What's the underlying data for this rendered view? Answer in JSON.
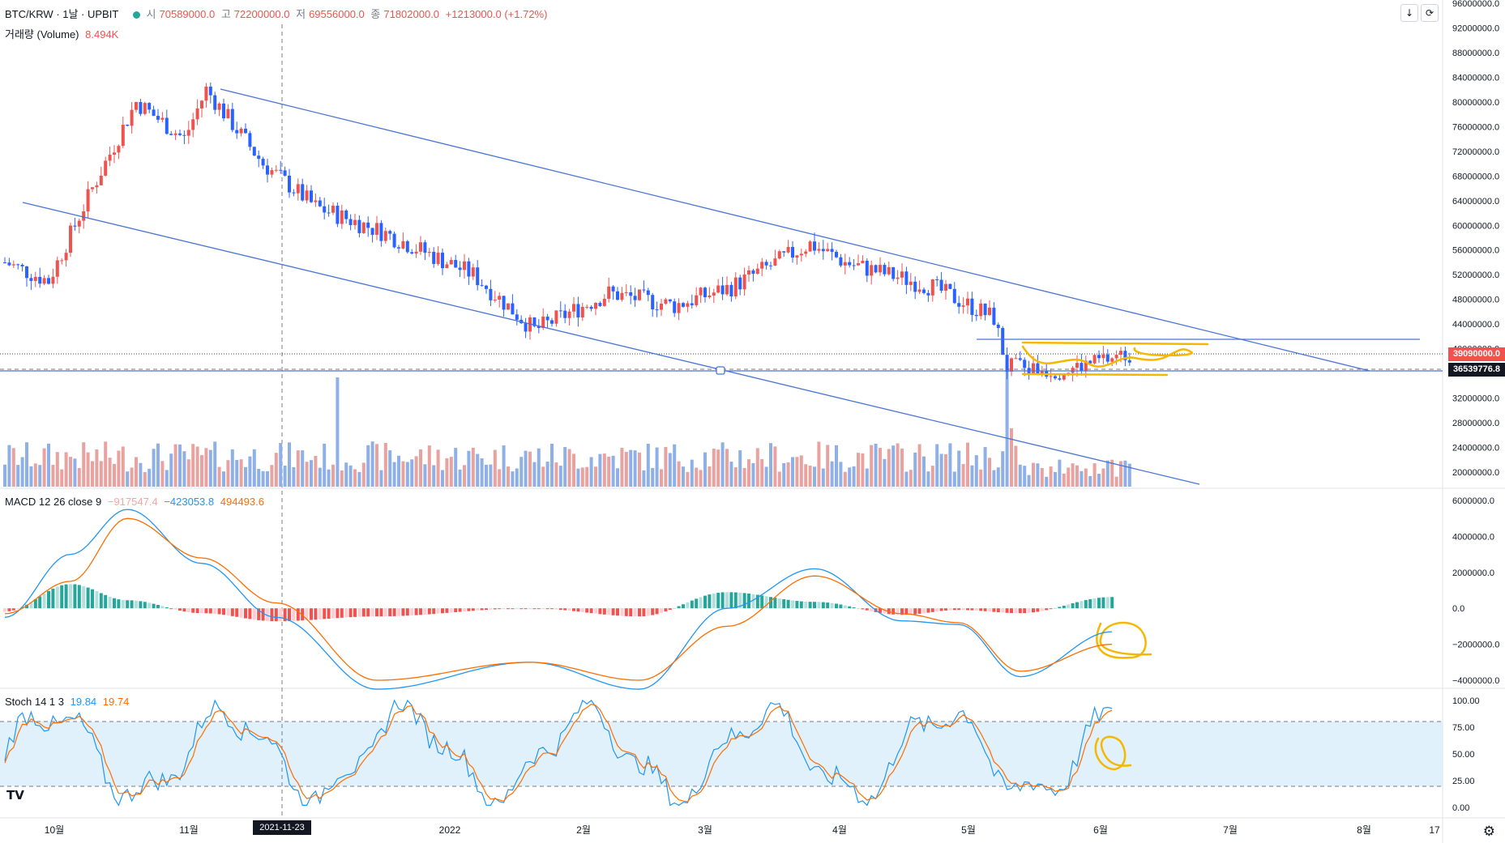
{
  "header": {
    "symbol": "BTC/KRW · 1날 · UPBIT",
    "open_label": "시",
    "open_value": "70589000.0",
    "high_label": "고",
    "high_value": "72200000.0",
    "low_label": "저",
    "low_value": "69556000.0",
    "close_label": "종",
    "close_value": "71802000.0",
    "change": "+1213000.0 (+1.72%)",
    "volume_label": "거래량 (Volume)",
    "volume_value": "8.494K"
  },
  "macd_legend": {
    "title": "MACD 12 26 close 9",
    "hist": "−917547.4",
    "macd": "−423053.8",
    "signal": "494493.6"
  },
  "stoch_legend": {
    "title": "Stoch 14 1 3",
    "k": "19.84",
    "d": "19.74"
  },
  "price_axis": [
    "96000000.0",
    "92000000.0",
    "88000000.0",
    "84000000.0",
    "80000000.0",
    "76000000.0",
    "72000000.0",
    "68000000.0",
    "64000000.0",
    "60000000.0",
    "56000000.0",
    "52000000.0",
    "48000000.0",
    "44000000.0",
    "40000000.0",
    "32000000.0",
    "28000000.0",
    "24000000.0",
    "20000000.0"
  ],
  "price_tags": {
    "last": "39090000.0",
    "crosshair": "36539776.8"
  },
  "macd_axis": [
    "6000000.0",
    "4000000.0",
    "2000000.0",
    "0.0",
    "−2000000.0",
    "−4000000.0"
  ],
  "stoch_axis": [
    "100.00",
    "75.00",
    "50.00",
    "25.00",
    "0.00"
  ],
  "time_axis": [
    "10월",
    "11월",
    "2022",
    "2월",
    "3월",
    "4월",
    "5월",
    "6월",
    "7월",
    "8월",
    "17"
  ],
  "crosshair_date": "2021-11-23",
  "toolbar": {
    "scroll_icon": "arrow-down-icon",
    "refresh_icon": "refresh-icon"
  },
  "colors": {
    "up": "#ef5350",
    "down": "#2962ff",
    "volume_up": "#e8a3a0",
    "volume_down": "#8fb0e6",
    "macd_line": "#2196f3",
    "signal_line": "#ff6d00",
    "trendline": "#4a74d6",
    "annotation": "#f5b800"
  },
  "chart_data": [
    {
      "type": "line",
      "title": "BTC/KRW · 1날 · UPBIT",
      "x": [
        "2021-09-25",
        "2021-10-05",
        "2021-10-15",
        "2021-10-25",
        "2021-11-05",
        "2021-11-10",
        "2021-11-23",
        "2021-12-05",
        "2021-12-20",
        "2022-01-10",
        "2022-01-24",
        "2022-02-10",
        "2022-02-25",
        "2022-03-10",
        "2022-03-28",
        "2022-04-05",
        "2022-04-25",
        "2022-05-09",
        "2022-05-12",
        "2022-05-25",
        "2022-06-05",
        "2022-06-11"
      ],
      "series": [
        {
          "values": [
            54000000,
            51000000,
            66000000,
            80000000,
            74000000,
            82000000,
            70000000,
            63000000,
            59000000,
            52000000,
            43000000,
            49000000,
            47000000,
            50000000,
            57000000,
            54000000,
            50000000,
            45000000,
            37000000,
            36500000,
            38500000,
            39090000
          ]
        }
      ],
      "ylim": [
        20000000,
        96000000
      ]
    },
    {
      "type": "bar",
      "title": "거래량 (Volume)",
      "x": [
        "2021-10",
        "2021-11",
        "2021-12",
        "2022-01",
        "2022-02",
        "2022-03",
        "2022-04",
        "2022-05",
        "2022-05-12",
        "2022-06"
      ],
      "series": [
        {
          "values": [
            4.5,
            6.0,
            5.0,
            4.2,
            5.5,
            5.0,
            4.0,
            5.0,
            30.0,
            8.494
          ]
        }
      ]
    },
    {
      "type": "line",
      "title": "MACD 12 26 close 9",
      "x": [
        "2021-09-25",
        "2021-10-10",
        "2021-10-20",
        "2021-11-10",
        "2021-11-25",
        "2021-12-15",
        "2022-01-20",
        "2022-02-15",
        "2022-03-10",
        "2022-03-30",
        "2022-04-20",
        "2022-05-10",
        "2022-05-20",
        "2022-06-05"
      ],
      "series": [
        {
          "name": "MACD",
          "values": [
            -500000,
            3000000,
            5500000,
            2500000,
            -500000,
            -4500000,
            -3000000,
            -4500000,
            0,
            2200000,
            -700000,
            -900000,
            -3800000,
            -1300000
          ]
        },
        {
          "name": "Signal",
          "values": [
            -300000,
            1500000,
            5000000,
            2800000,
            300000,
            -4000000,
            -3000000,
            -4000000,
            -1000000,
            1800000,
            -300000,
            -800000,
            -3500000,
            -2000000
          ]
        }
      ],
      "ylim": [
        -4000000,
        6000000
      ]
    },
    {
      "type": "line",
      "title": "Stoch 14 1 3",
      "x": [
        "2021-10-01",
        "2021-10-15",
        "2021-11-01",
        "2021-11-10",
        "2021-12-01",
        "2022-01-01",
        "2022-02-01",
        "2022-03-01",
        "2022-03-25",
        "2022-04-15",
        "2022-05-15",
        "2022-05-30",
        "2022-06-11"
      ],
      "series": [
        {
          "name": "%K",
          "values": [
            30,
            95,
            20,
            100,
            15,
            90,
            10,
            95,
            100,
            20,
            10,
            85,
            19.84
          ]
        },
        {
          "name": "%D",
          "values": [
            35,
            90,
            25,
            95,
            20,
            85,
            15,
            90,
            95,
            25,
            15,
            80,
            19.74
          ]
        }
      ],
      "ylim": [
        0,
        100
      ]
    }
  ]
}
